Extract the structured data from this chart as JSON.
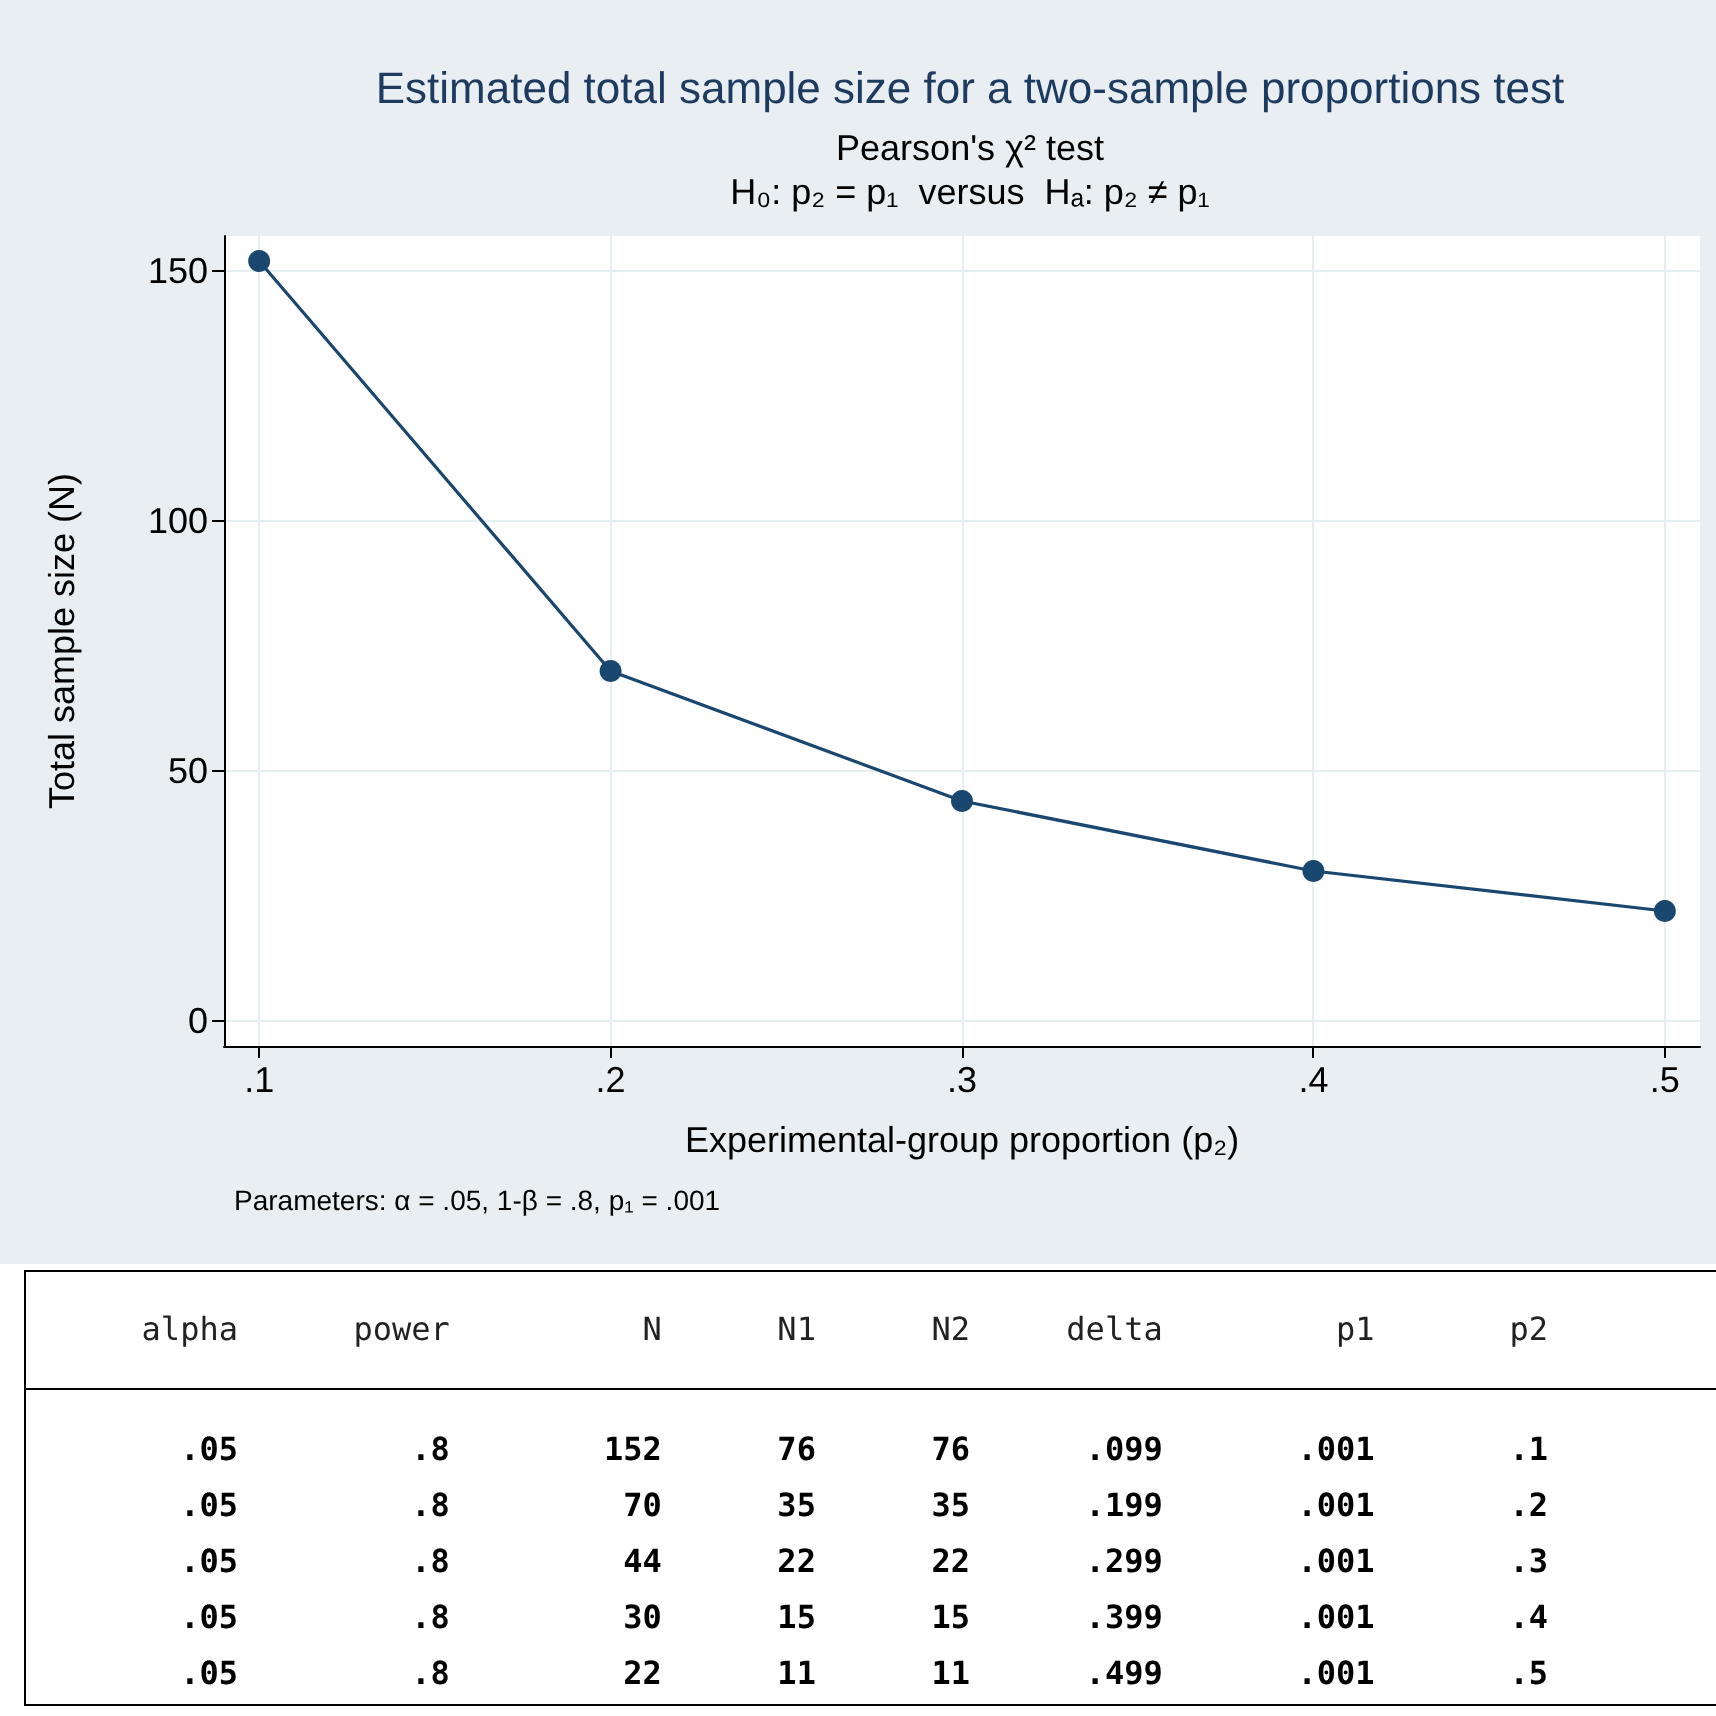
{
  "chart_data": [
    {
      "type": "line",
      "title": "Estimated total sample size for a two-sample proportions test",
      "subtitle": "Pearson's χ² test\nH₀: p₂ = p₁  versus  Hₐ: p₂ ≠ p₁",
      "xlabel": "Experimental-group proportion (p₂)",
      "ylabel": "Total sample size (N)",
      "annotations": [
        "Parameters: α = .05, 1-β = .8, p₁ = .001"
      ],
      "x": [
        0.1,
        0.2,
        0.3,
        0.4,
        0.5
      ],
      "series": [
        {
          "color": "#1a476f",
          "values": [
            152,
            70,
            44,
            30,
            22
          ]
        }
      ],
      "xlim": [
        0.09,
        0.51
      ],
      "xticks": [
        {
          "value": 0.1,
          "label": ".1"
        },
        {
          "value": 0.2,
          "label": ".2"
        },
        {
          "value": 0.3,
          "label": ".3"
        },
        {
          "value": 0.4,
          "label": ".4"
        },
        {
          "value": 0.5,
          "label": ".5"
        }
      ],
      "ylim": [
        -5,
        157
      ],
      "yticks": [
        0,
        50,
        100,
        150
      ],
      "grid": true,
      "marker": "circle",
      "line_style": "solid"
    },
    {
      "type": "other",
      "annotations": [
        "alpha power N N1 N2 delta p1 p2",
        ".05 .8 152 76 76 .099 .001 .1",
        ".05 .8 70 35 35 .199 .001 .2",
        ".05 .8 44 22 22 .299 .001 .3",
        ".05 .8 30 15 15 .399 .001 .4",
        ".05 .8 22 11 11 .499 .001 .5"
      ]
    }
  ]
}
